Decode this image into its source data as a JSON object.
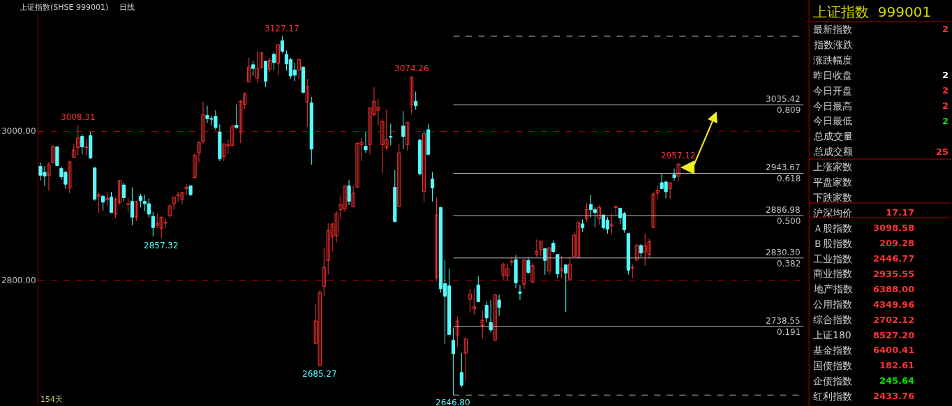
{
  "chart_data": [
    {
      "type": "candlestick",
      "title": "上证指数(SHSE 999001)",
      "subtitle": "日线",
      "categories": [
        null,
        null,
        null,
        null,
        null,
        null,
        null,
        null,
        null,
        null,
        null,
        null,
        null,
        null,
        null,
        null,
        null,
        null,
        null,
        null,
        null,
        null,
        null,
        null,
        null,
        null,
        null,
        null,
        null,
        null,
        null,
        null,
        null,
        null,
        null,
        null,
        null,
        null,
        null,
        null,
        null,
        null,
        null,
        null,
        null,
        null,
        null,
        null,
        null,
        null,
        null,
        null,
        null,
        null,
        null,
        null,
        null,
        null,
        null,
        null,
        null,
        null,
        null,
        null,
        null,
        null,
        null,
        null,
        null,
        null,
        null,
        null,
        null,
        null,
        null,
        null,
        null,
        null,
        null,
        null,
        null,
        null,
        null,
        null,
        null,
        null,
        null,
        null,
        null,
        null,
        null,
        null,
        null,
        null,
        null,
        null,
        null,
        null,
        null,
        null,
        null,
        null,
        null,
        null,
        null,
        null,
        null,
        null,
        null,
        null,
        null,
        null,
        null,
        null,
        null,
        null,
        null,
        null,
        null,
        null,
        null,
        null,
        null,
        null,
        null,
        null,
        null,
        null,
        null,
        null,
        null,
        null,
        null,
        null,
        null,
        null,
        null,
        null,
        null,
        null,
        null,
        null,
        null,
        null,
        null,
        null,
        null,
        null,
        null,
        null,
        null,
        null,
        null,
        null
      ],
      "ohlc": [
        [
          2953,
          2958,
          2934,
          2941
        ],
        [
          2945,
          2953,
          2927,
          2940
        ],
        [
          2941,
          2959,
          2920,
          2955
        ],
        [
          2958,
          2981,
          2957,
          2980
        ],
        [
          2979,
          2980,
          2953,
          2954
        ],
        [
          2950,
          2953,
          2935,
          2939
        ],
        [
          2945,
          2947,
          2923,
          2929
        ],
        [
          2924,
          2960,
          2917,
          2959
        ],
        [
          2965,
          2983,
          2965,
          2975
        ],
        [
          2978,
          3008.31,
          2968,
          2991
        ],
        [
          2993,
          2996,
          2969,
          2979
        ],
        [
          2978,
          2990,
          2968,
          2979
        ],
        [
          2994,
          2999,
          2963,
          2964
        ],
        [
          2951,
          2951,
          2907,
          2909
        ],
        [
          2913,
          2918,
          2891,
          2915
        ],
        [
          2913,
          2914,
          2894,
          2905
        ],
        [
          2908,
          2918,
          2899,
          2910
        ],
        [
          2912,
          2919,
          2891,
          2891
        ],
        [
          2889,
          2912,
          2884,
          2909
        ],
        [
          2904,
          2934,
          2902,
          2934
        ],
        [
          2928,
          2931,
          2906,
          2911
        ],
        [
          2902,
          2911,
          2891,
          2903
        ],
        [
          2906,
          2925,
          2874,
          2885
        ],
        [
          2885,
          2906,
          2880,
          2906
        ],
        [
          2913,
          2916,
          2898,
          2907
        ],
        [
          2906,
          2915,
          2893,
          2903
        ],
        [
          2903,
          2910,
          2884,
          2889
        ],
        [
          2886,
          2892,
          2859,
          2871
        ],
        [
          2874,
          2890,
          2870,
          2877
        ],
        [
          2870,
          2885,
          2857.32,
          2885
        ],
        [
          2877,
          2883,
          2870,
          2878
        ],
        [
          2887,
          2903,
          2884,
          2900
        ],
        [
          2903,
          2912,
          2895,
          2912
        ],
        [
          2914,
          2919,
          2905,
          2915
        ],
        [
          2909,
          2919,
          2903,
          2918
        ],
        [
          2923,
          2929,
          2914,
          2925
        ],
        [
          2927,
          2927,
          2913,
          2915
        ],
        [
          2938,
          2970,
          2936,
          2968
        ],
        [
          2971,
          2986,
          2958,
          2985
        ],
        [
          2986,
          3040,
          2983,
          3022
        ],
        [
          3021,
          3034,
          3011,
          3017
        ],
        [
          3017,
          3021,
          3008,
          3016
        ],
        [
          3020,
          3028,
          3002,
          3005
        ],
        [
          2999,
          3009,
          2960,
          2963
        ],
        [
          2966,
          2984,
          2960,
          2983
        ],
        [
          2980,
          2989,
          2970,
          2982
        ],
        [
          2981,
          3008,
          2980,
          3007
        ],
        [
          3008,
          3036,
          3003,
          3005
        ],
        [
          2998,
          3042,
          2984,
          3040
        ],
        [
          3036,
          3052,
          3030,
          3050
        ],
        [
          3066,
          3098,
          3066,
          3086
        ],
        [
          3089,
          3094,
          3074,
          3084
        ],
        [
          3071,
          3107,
          3065,
          3084
        ],
        [
          3085,
          3105,
          3085,
          3105
        ],
        [
          3094,
          3094,
          3059,
          3067
        ],
        [
          3083,
          3098,
          3079,
          3095
        ],
        [
          3103,
          3106,
          3082,
          3092
        ],
        [
          3091,
          3116,
          3075,
          3116
        ],
        [
          3121,
          3127.17,
          3105,
          3107
        ],
        [
          3103,
          3108,
          3081,
          3090
        ],
        [
          3096,
          3098,
          3070,
          3074
        ],
        [
          3082,
          3092,
          3067,
          3075
        ],
        [
          3082,
          3096,
          3070,
          3096
        ],
        [
          3086,
          3086,
          3051,
          3052
        ],
        [
          3039,
          3070,
          3006,
          3060
        ],
        [
          3038,
          3046,
          2955,
          2976
        ],
        [
          2716,
          2768,
          2716,
          2746
        ],
        [
          2686,
          2787,
          2685.27,
          2784
        ],
        [
          2792,
          2843,
          2779,
          2818
        ],
        [
          2827,
          2877,
          2808,
          2867
        ],
        [
          2859,
          2876,
          2839,
          2876
        ],
        [
          2860,
          2893,
          2851,
          2890
        ],
        [
          2895,
          2914,
          2882,
          2902
        ],
        [
          2896,
          2927,
          2892,
          2927
        ],
        [
          2927,
          2935,
          2901,
          2906
        ],
        [
          2899,
          2927,
          2899,
          2917
        ],
        [
          2925,
          2984,
          2925,
          2984
        ],
        [
          2982,
          2991,
          2960,
          2985
        ],
        [
          2980,
          2999,
          2971,
          2975
        ],
        [
          2982,
          3032,
          2969,
          3031
        ],
        [
          3022,
          3059,
          3020,
          3040
        ],
        [
          3028,
          3043,
          3007,
          3032
        ],
        [
          2982,
          3017,
          2943,
          3013
        ],
        [
          2978,
          3029,
          2975,
          2989
        ],
        [
          2993,
          3010,
          2981,
          2992
        ],
        [
          2925,
          2948,
          2878,
          2879
        ],
        [
          2899,
          2983,
          2899,
          2971
        ],
        [
          3007,
          3027,
          2976,
          2993
        ],
        [
          2982,
          3012,
          2974,
          3012
        ],
        [
          3036,
          3074.26,
          3023,
          3072
        ],
        [
          3040,
          3053,
          3029,
          3034
        ],
        [
          2988,
          2990,
          2941,
          2943
        ],
        [
          2919,
          3001,
          2905,
          2997
        ],
        [
          3002,
          3010,
          2969,
          2969
        ],
        [
          2936,
          2945,
          2906,
          2924
        ],
        [
          2804,
          2911,
          2799,
          2888
        ],
        [
          2898,
          2898,
          2784,
          2789
        ],
        [
          2796,
          2827,
          2715,
          2779
        ],
        [
          2793,
          2816,
          2728,
          2728
        ],
        [
          2720,
          2737,
          2646.8,
          2702
        ],
        [
          2727,
          2752,
          2711,
          2746
        ],
        [
          2677,
          2703,
          2657,
          2660
        ],
        [
          2703,
          2723,
          2666,
          2722
        ],
        [
          2775,
          2789,
          2757,
          2782
        ],
        [
          2762,
          2789,
          2754,
          2765
        ],
        [
          2794,
          2806,
          2771,
          2772
        ],
        [
          2740,
          2760,
          2722,
          2747
        ],
        [
          2767,
          2772,
          2744,
          2750
        ],
        [
          2744,
          2774,
          2731,
          2734
        ],
        [
          2720,
          2781,
          2720,
          2781
        ],
        [
          2774,
          2781,
          2753,
          2764
        ],
        [
          2807,
          2824,
          2801,
          2822
        ],
        [
          2806,
          2823,
          2800,
          2816
        ],
        [
          2825,
          2832,
          2820,
          2826
        ],
        [
          2828,
          2834,
          2790,
          2797
        ],
        [
          2785,
          2794,
          2774,
          2783
        ],
        [
          2795,
          2828,
          2789,
          2828
        ],
        [
          2827,
          2831,
          2809,
          2811
        ],
        [
          2798,
          2823,
          2797,
          2820
        ],
        [
          2835,
          2855,
          2832,
          2839
        ],
        [
          2841,
          2853,
          2833,
          2853
        ],
        [
          2843,
          2843,
          2808,
          2827
        ],
        [
          2813,
          2844,
          2808,
          2844
        ],
        [
          2850,
          2854,
          2836,
          2839
        ],
        [
          2835,
          2835,
          2803,
          2809
        ],
        [
          2813,
          2833,
          2803,
          2816
        ],
        [
          2821,
          2822,
          2758,
          2810
        ],
        [
          2802,
          2832,
          2800,
          2822
        ],
        [
          2832,
          2866,
          2832,
          2861
        ],
        [
          2831,
          2879,
          2831,
          2878
        ],
        [
          2876,
          2882,
          2865,
          2871
        ],
        [
          2883,
          2904,
          2879,
          2895
        ],
        [
          2902,
          2915,
          2885,
          2895
        ],
        [
          2895,
          2898,
          2871,
          2891
        ],
        [
          2883,
          2901,
          2875,
          2898
        ],
        [
          2888,
          2888,
          2869,
          2871
        ],
        [
          2881,
          2885,
          2863,
          2869
        ],
        [
          2873,
          2890,
          2862,
          2875
        ],
        [
          2898,
          2901,
          2888,
          2899
        ],
        [
          2897,
          2897,
          2876,
          2884
        ],
        [
          2890,
          2892,
          2864,
          2868
        ],
        [
          2863,
          2863,
          2808,
          2814
        ],
        [
          2817,
          2822,
          2803,
          2818
        ],
        [
          2828,
          2849,
          2825,
          2847
        ],
        [
          2847,
          2849,
          2832,
          2837
        ],
        [
          2838,
          2863,
          2820,
          2847
        ],
        [
          2835,
          2856,
          2829,
          2852
        ],
        [
          2871,
          2918,
          2871,
          2916
        ],
        [
          2917,
          2927,
          2909,
          2921
        ],
        [
          2931,
          2943,
          2923,
          2923
        ],
        [
          2932,
          2934,
          2910,
          2919
        ],
        [
          2923,
          2931,
          2909,
          2931
        ],
        [
          2942,
          2950,
          2934,
          2938
        ],
        [
          2940,
          2957.12,
          2933,
          2956
        ]
      ],
      "colors": [
        "#54fcfc",
        "#54fcfc",
        "#ff3232",
        "#ff3232",
        "#54fcfc",
        "#54fcfc",
        "#54fcfc",
        "#ff3232",
        "#ff3232",
        "#ff3232",
        "#54fcfc",
        "#ff3232",
        "#54fcfc",
        "#54fcfc",
        "#ff3232",
        "#54fcfc",
        "#ff3232",
        "#54fcfc",
        "#ff3232",
        "#ff3232",
        "#54fcfc",
        "#ff3232",
        "#54fcfc",
        "#ff3232",
        "#54fcfc",
        "#54fcfc",
        "#54fcfc",
        "#54fcfc",
        "#ff3232",
        "#ff3232",
        "#ff3232",
        "#ff3232",
        "#ff3232",
        "#ff3232",
        "#ff3232",
        "#ff3232",
        "#54fcfc",
        "#ff3232",
        "#ff3232",
        "#ff3232",
        "#54fcfc",
        "#54fcfc",
        "#54fcfc",
        "#54fcfc",
        "#ff3232",
        "#ff3232",
        "#ff3232",
        "#54fcfc",
        "#ff3232",
        "#ff3232",
        "#ff3232",
        "#54fcfc",
        "#ff3232",
        "#ff3232",
        "#54fcfc",
        "#ff3232",
        "#54fcfc",
        "#ff3232",
        "#54fcfc",
        "#54fcfc",
        "#54fcfc",
        "#54fcfc",
        "#ff3232",
        "#54fcfc",
        "#ff3232",
        "#54fcfc",
        "#ff3232",
        "#ff3232",
        "#ff3232",
        "#ff3232",
        "#ff3232",
        "#ff3232",
        "#ff3232",
        "#ff3232",
        "#54fcfc",
        "#ff3232",
        "#ff3232",
        "#ff3232",
        "#54fcfc",
        "#ff3232",
        "#ff3232",
        "#ff3232",
        "#ff3232",
        "#ff3232",
        "#54fcfc",
        "#54fcfc",
        "#ff3232",
        "#54fcfc",
        "#ff3232",
        "#ff3232",
        "#54fcfc",
        "#54fcfc",
        "#ff3232",
        "#54fcfc",
        "#54fcfc",
        "#ff3232",
        "#54fcfc",
        "#54fcfc",
        "#54fcfc",
        "#54fcfc",
        "#ff3232",
        "#54fcfc",
        "#ff3232",
        "#ff3232",
        "#ff3232",
        "#54fcfc",
        "#ff3232",
        "#54fcfc",
        "#54fcfc",
        "#ff3232",
        "#54fcfc",
        "#ff3232",
        "#ff3232",
        "#ff3232",
        "#54fcfc",
        "#54fcfc",
        "#ff3232",
        "#54fcfc",
        "#ff3232",
        "#ff3232",
        "#ff3232",
        "#54fcfc",
        "#ff3232",
        "#54fcfc",
        "#54fcfc",
        "#ff3232",
        "#54fcfc",
        "#ff3232",
        "#ff3232",
        "#ff3232",
        "#54fcfc",
        "#ff3232",
        "#54fcfc",
        "#54fcfc",
        "#ff3232",
        "#54fcfc",
        "#54fcfc",
        "#ff3232",
        "#ff3232",
        "#54fcfc",
        "#54fcfc",
        "#54fcfc",
        "#ff3232",
        "#ff3232",
        "#54fcfc",
        "#ff3232",
        "#ff3232",
        "#ff3232",
        "#ff3232",
        "#54fcfc",
        "#54fcfc",
        "#ff3232",
        "#54fcfc",
        "#ff3232"
      ],
      "ylim": [
        2634,
        3157
      ],
      "yticks": [
        {
          "value": 2800,
          "label": "2800.00"
        },
        {
          "value": 3000,
          "label": "3000.00"
        }
      ],
      "grid": "y",
      "tick_labels": "y",
      "ref_lines": [
        {
          "axis": "y",
          "value": 3127.17,
          "label": null,
          "color": "#c0c0c0",
          "line_style": "dashed"
        },
        {
          "axis": "y",
          "value": 3035.42,
          "label": "3035.42\n0.809",
          "color": "#c0c0c0",
          "line_style": "solid"
        },
        {
          "axis": "y",
          "value": 2943.67,
          "label": "2943.67\n0.618",
          "color": "#c0c0c0",
          "line_style": "solid"
        },
        {
          "axis": "y",
          "value": 2886.98,
          "label": "2886.98\n0.500",
          "color": "#c0c0c0",
          "line_style": "solid"
        },
        {
          "axis": "y",
          "value": 2830.3,
          "label": "2830.30\n0.382",
          "color": "#c0c0c0",
          "line_style": "solid"
        },
        {
          "axis": "y",
          "value": 2738.55,
          "label": "2738.55\n0.191",
          "color": "#c0c0c0",
          "line_style": "solid"
        },
        {
          "axis": "y",
          "value": 2646.8,
          "label": null,
          "color": "#c0c0c0",
          "line_style": "dashed"
        }
      ],
      "annotations": [
        "154天",
        {
          "text": "3008.31",
          "y": 3008.31
        },
        {
          "text": "3127.17",
          "y": 3127.17
        },
        {
          "text": "3074.26",
          "y": 3074.26
        },
        {
          "text": "2957.12",
          "y": 2957.12
        },
        {
          "text": "2857.32",
          "y": 2857.32
        },
        {
          "text": "2685.27",
          "y": 2685.27
        },
        {
          "text": "2646.80",
          "y": 2646.8
        }
      ]
    },
    {
      "type": "other",
      "title": "上证指数  999001",
      "categories": [
        "最新指数",
        "指数涨跌",
        "涨跌幅度",
        "昨日收盘",
        "今日开盘",
        "今日最高",
        "今日最低",
        "总成交量",
        "总成交额",
        "上涨家数",
        "平盘家数",
        "下跌家数",
        "沪深均价",
        "Ａ股指数",
        "Ｂ股指数",
        "工业指数",
        "商业指数",
        "地产指数",
        "公用指数",
        "综合指数",
        "上证180",
        "基金指数",
        "国债指数",
        "企债指数",
        "红利指数"
      ],
      "value_labels": [
        "2",
        null,
        null,
        "2",
        "2",
        "2",
        "2",
        null,
        "25",
        null,
        null,
        null,
        "17.17",
        "3098.58",
        "209.28",
        "2446.77",
        "2935.55",
        "6388.00",
        "4349.96",
        "2702.12",
        "8527.20",
        "6400.41",
        "182.61",
        "245.64",
        "2433.76"
      ],
      "colors": [
        "#ff3232",
        null,
        null,
        "#ffffff",
        "#ff3232",
        "#ff3232",
        "#00e600",
        null,
        "#ff3232",
        null,
        null,
        null,
        "#ff3232",
        "#ff3232",
        "#ff3232",
        "#ff3232",
        "#ff3232",
        "#ff3232",
        "#ff3232",
        "#ff3232",
        "#ff3232",
        "#ff3232",
        "#ff3232",
        "#00e600",
        "#ff3232"
      ]
    }
  ]
}
